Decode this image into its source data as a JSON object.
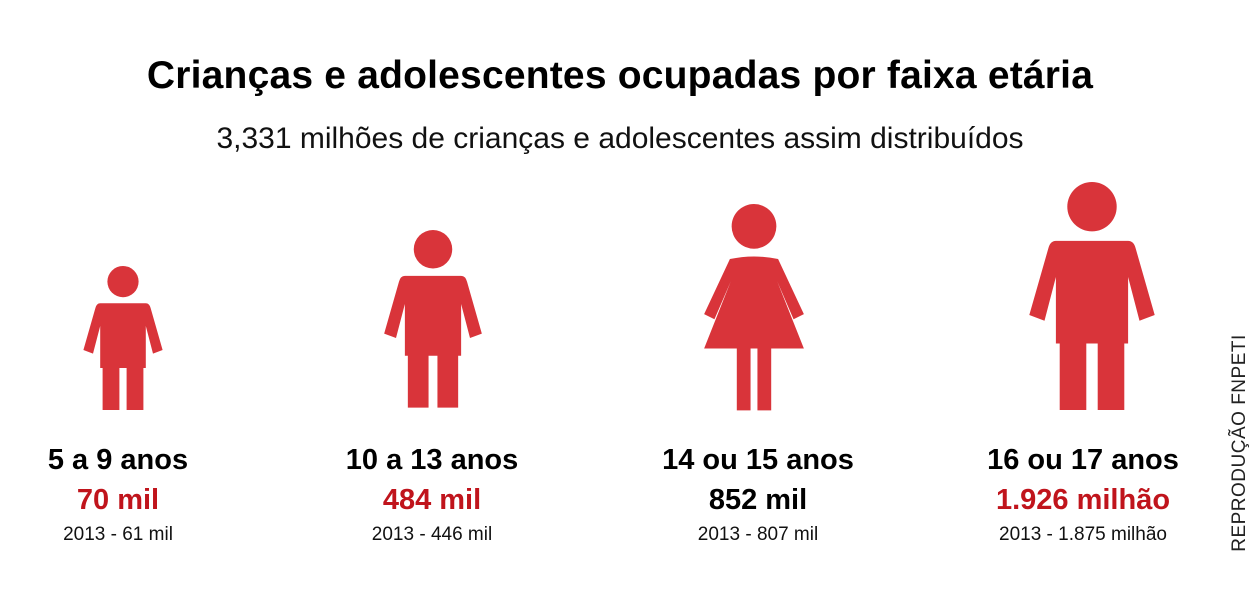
{
  "chart_data": {
    "type": "pictograph",
    "title": "Crianças e adolescentes ocupadas por faixa etária",
    "subtitle": "3,331 milhões de crianças e adolescentes assim distribuídos",
    "categories": [
      "5 a 9 anos",
      "10 a 13 anos",
      "14 ou 15 anos",
      "16 ou 17 anos"
    ],
    "values_label": [
      "70 mil",
      "484 mil",
      "852 mil",
      "1.926 milhão"
    ],
    "values": [
      70,
      484,
      852,
      1926
    ],
    "previous_label": [
      "2013 - 61 mil",
      "2013 - 446 mil",
      "2013 - 807 mil",
      "2013 - 1.875 milhão"
    ],
    "previous_values": [
      61,
      446,
      807,
      1875
    ],
    "units": "mil",
    "value_colors": [
      "#c0141c",
      "#c0141c",
      "#000000",
      "#c0141c"
    ],
    "figure_types": [
      "boy",
      "boy",
      "girl",
      "man"
    ]
  },
  "colors": {
    "figure": "#d9343a",
    "accent": "#c0141c"
  },
  "credit": "REPRODUÇÃO FNPETI"
}
